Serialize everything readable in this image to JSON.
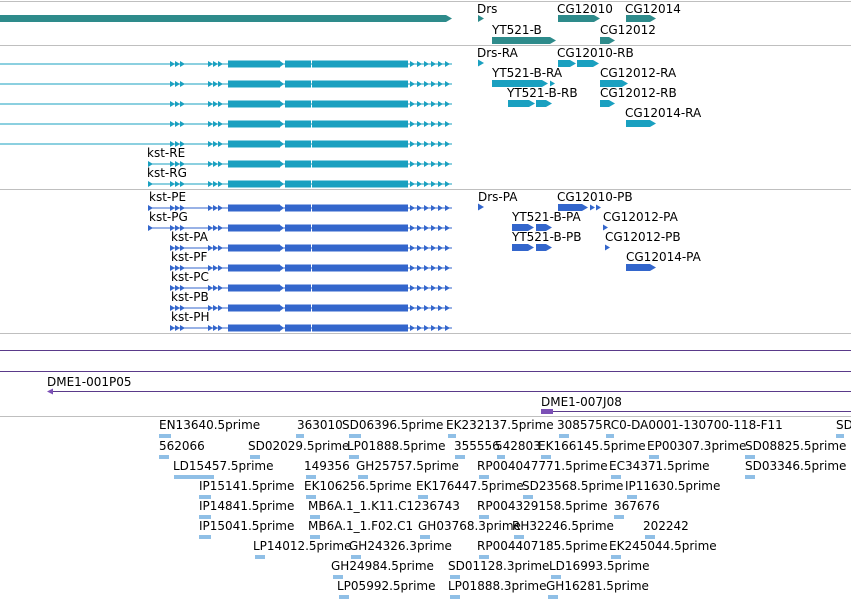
{
  "colors": {
    "gene": "#2e8b8b",
    "mrna": "#1aa0c0",
    "cds": "#3366cc",
    "clone": "#7b4fb5",
    "est": "#8fbfe6",
    "divider": "#bfbfbf",
    "track_line": "#5a3a8a"
  },
  "genes_track": {
    "labels": [
      {
        "id": "drs",
        "text": "Drs"
      },
      {
        "id": "cg12010",
        "text": "CG12010"
      },
      {
        "id": "cg12014",
        "text": "CG12014"
      },
      {
        "id": "yt521b",
        "text": "YT521-B"
      },
      {
        "id": "cg12012",
        "text": "CG12012"
      }
    ]
  },
  "mrna_track": {
    "labels": [
      {
        "id": "drs-ra",
        "text": "Drs-RA"
      },
      {
        "id": "cg12010-rb",
        "text": "CG12010-RB"
      },
      {
        "id": "yt521b-ra",
        "text": "YT521-B-RA"
      },
      {
        "id": "cg12012-ra",
        "text": "CG12012-RA"
      },
      {
        "id": "yt521b-rb",
        "text": "YT521-B-RB"
      },
      {
        "id": "cg12012-rb",
        "text": "CG12012-RB"
      },
      {
        "id": "cg12014-ra",
        "text": "CG12014-RA"
      },
      {
        "id": "kst-re",
        "text": "kst-RE"
      },
      {
        "id": "kst-rg",
        "text": "kst-RG"
      }
    ]
  },
  "cds_track": {
    "labels": [
      {
        "id": "kst-pe",
        "text": "kst-PE"
      },
      {
        "id": "drs-pa",
        "text": "Drs-PA"
      },
      {
        "id": "cg12010-pb",
        "text": "CG12010-PB"
      },
      {
        "id": "kst-pg",
        "text": "kst-PG"
      },
      {
        "id": "yt521b-pa",
        "text": "YT521-B-PA"
      },
      {
        "id": "cg12012-pa",
        "text": "CG12012-PA"
      },
      {
        "id": "kst-pa",
        "text": "kst-PA"
      },
      {
        "id": "yt521b-pb",
        "text": "YT521-B-PB"
      },
      {
        "id": "cg12012-pb",
        "text": "CG12012-PB"
      },
      {
        "id": "kst-pf",
        "text": "kst-PF"
      },
      {
        "id": "cg12014-pa",
        "text": "CG12014-PA"
      },
      {
        "id": "kst-pc",
        "text": "kst-PC"
      },
      {
        "id": "kst-pb",
        "text": "kst-PB"
      },
      {
        "id": "kst-ph",
        "text": "kst-PH"
      }
    ]
  },
  "clone_track": {
    "labels": [
      {
        "id": "dme1-001p05",
        "text": "DME1-001P05"
      },
      {
        "id": "dme1-007j08",
        "text": "DME1-007J08"
      }
    ]
  },
  "est_track": {
    "labels": [
      {
        "id": "e1",
        "text": "EN13640.5prime"
      },
      {
        "id": "e2",
        "text": "363010"
      },
      {
        "id": "e3",
        "text": "SD06396.5prime"
      },
      {
        "id": "e4",
        "text": "EK232137.5prime"
      },
      {
        "id": "e5",
        "text": "308575"
      },
      {
        "id": "e6",
        "text": "RC0-DA0001-130700-118-F11"
      },
      {
        "id": "e7",
        "text": "SD"
      },
      {
        "id": "e8",
        "text": "562066"
      },
      {
        "id": "e9",
        "text": "SD02029.5prime"
      },
      {
        "id": "e10",
        "text": "LP01888.5prime"
      },
      {
        "id": "e11",
        "text": "355556"
      },
      {
        "id": "e12",
        "text": "542803"
      },
      {
        "id": "e13",
        "text": "EK166145.5prime"
      },
      {
        "id": "e14",
        "text": "EP00307.3prime"
      },
      {
        "id": "e15",
        "text": "SD08825.5prime"
      },
      {
        "id": "e16",
        "text": "LD15457.5prime"
      },
      {
        "id": "e17",
        "text": "149356"
      },
      {
        "id": "e18",
        "text": "GH25757.5prime"
      },
      {
        "id": "e19",
        "text": "RP004047771.5prime"
      },
      {
        "id": "e20",
        "text": "EC34371.5prime"
      },
      {
        "id": "e21",
        "text": "SD03346.5prime"
      },
      {
        "id": "e22",
        "text": "IP15141.5prime"
      },
      {
        "id": "e23",
        "text": "EK106256.5prime"
      },
      {
        "id": "e24",
        "text": "EK176447.5prime"
      },
      {
        "id": "e25",
        "text": "SD23568.5prime"
      },
      {
        "id": "e26",
        "text": "IP11630.5prime"
      },
      {
        "id": "e27",
        "text": "IP14841.5prime"
      },
      {
        "id": "e28",
        "text": "MB6A.1_1.K11.C1236743"
      },
      {
        "id": "e29",
        "text": "RP004329158.5prime"
      },
      {
        "id": "e30",
        "text": "367676"
      },
      {
        "id": "e31",
        "text": "IP15041.5prime"
      },
      {
        "id": "e32",
        "text": "MB6A.1_1.F02.C1"
      },
      {
        "id": "e33",
        "text": "GH03768.3prime"
      },
      {
        "id": "e34",
        "text": "RH32246.5prime"
      },
      {
        "id": "e35",
        "text": "202242"
      },
      {
        "id": "e36",
        "text": "LP14012.5prime"
      },
      {
        "id": "e37",
        "text": "GH24326.3prime"
      },
      {
        "id": "e38",
        "text": "RP004407185.5prime"
      },
      {
        "id": "e39",
        "text": "EK245044.5prime"
      },
      {
        "id": "e40",
        "text": "GH24984.5prime"
      },
      {
        "id": "e41",
        "text": "SD01128.3prime"
      },
      {
        "id": "e42",
        "text": "LD16993.5prime"
      },
      {
        "id": "e43",
        "text": "LP05992.5prime"
      },
      {
        "id": "e44",
        "text": "LP01888.3prime"
      },
      {
        "id": "e45",
        "text": "GH16281.5prime"
      }
    ]
  }
}
